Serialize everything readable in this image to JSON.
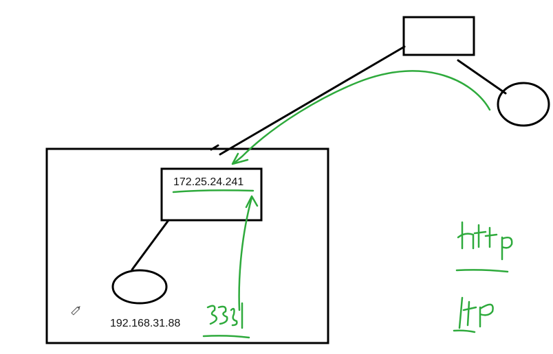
{
  "labels": {
    "router_ip": "172.25.24.241",
    "host_ip": "192.168.31.88",
    "handwritten_right_top": "http",
    "handwritten_right_bottom": "ftp",
    "handwritten_bottom_note": "3389"
  },
  "colors": {
    "ink": "#000000",
    "annotation": "#2eaa3c",
    "background": "#ffffff"
  },
  "icons": {
    "cursor": "pencil-cursor-icon"
  }
}
